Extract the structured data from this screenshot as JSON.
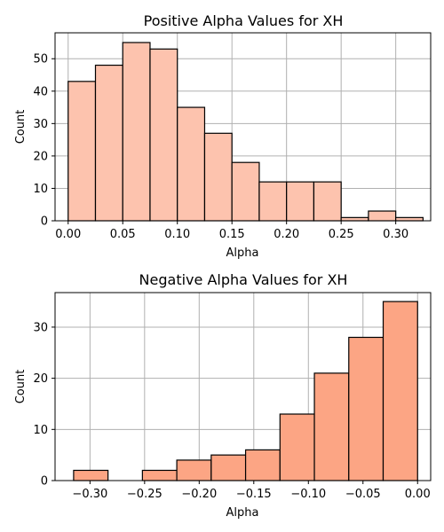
{
  "chart_data": [
    {
      "type": "bar",
      "title": "Positive Alpha Values for XH",
      "xlabel": "Alpha",
      "ylabel": "Count",
      "bar_color": "#fdc3ae",
      "xlim": [
        -0.012,
        0.332
      ],
      "ylim": [
        0,
        58
      ],
      "xticks": [
        0.0,
        0.05,
        0.1,
        0.15,
        0.2,
        0.25,
        0.3
      ],
      "xtick_labels": [
        "0.00",
        "0.05",
        "0.10",
        "0.15",
        "0.20",
        "0.25",
        "0.30"
      ],
      "yticks": [
        0,
        10,
        20,
        30,
        40,
        50
      ],
      "ytick_labels": [
        "0",
        "10",
        "20",
        "30",
        "40",
        "50"
      ],
      "bin_edges": [
        0.0,
        0.025,
        0.05,
        0.075,
        0.1,
        0.125,
        0.15,
        0.175,
        0.2,
        0.225,
        0.25,
        0.275,
        0.3,
        0.325
      ],
      "values": [
        43,
        48,
        55,
        53,
        35,
        27,
        18,
        12,
        12,
        12,
        1,
        3,
        1
      ],
      "grid": true
    },
    {
      "type": "bar",
      "title": "Negative Alpha Values for XH",
      "xlabel": "Alpha",
      "ylabel": "Count",
      "bar_color": "#fca584",
      "xlim": [
        -0.332,
        0.012
      ],
      "ylim": [
        0,
        36.75
      ],
      "xticks": [
        -0.3,
        -0.25,
        -0.2,
        -0.15,
        -0.1,
        -0.05,
        0.0
      ],
      "xtick_labels": [
        "−0.30",
        "−0.25",
        "−0.20",
        "−0.15",
        "−0.10",
        "−0.05",
        "0.00"
      ],
      "yticks": [
        0,
        10,
        20,
        30
      ],
      "ytick_labels": [
        "0",
        "10",
        "20",
        "30"
      ],
      "bin_edges": [
        -0.315,
        -0.2835,
        -0.252,
        -0.2205,
        -0.189,
        -0.1575,
        -0.126,
        -0.0945,
        -0.063,
        -0.0315,
        0.0
      ],
      "values": [
        2,
        0,
        2,
        4,
        5,
        6,
        13,
        21,
        28,
        35
      ],
      "grid": true
    }
  ]
}
